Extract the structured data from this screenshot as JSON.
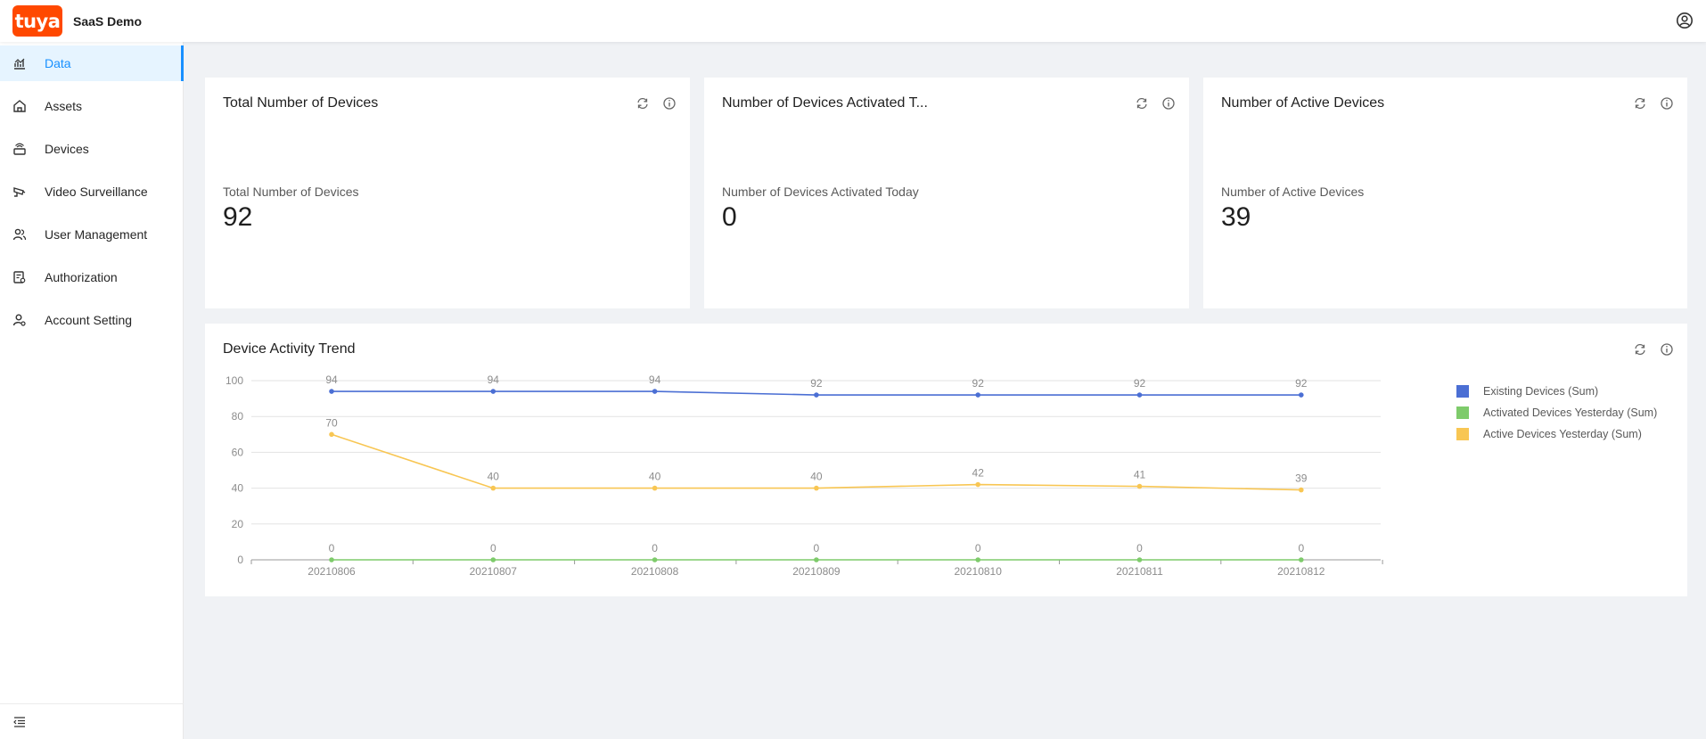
{
  "header": {
    "logo_text": "tuya",
    "app_name": "SaaS Demo"
  },
  "sidebar": {
    "items": [
      {
        "label": "Data",
        "icon": "chart-icon",
        "active": true
      },
      {
        "label": "Assets",
        "icon": "home-icon",
        "active": false
      },
      {
        "label": "Devices",
        "icon": "device-icon",
        "active": false
      },
      {
        "label": "Video Surveillance",
        "icon": "camera-icon",
        "active": false
      },
      {
        "label": "User Management",
        "icon": "users-icon",
        "active": false
      },
      {
        "label": "Authorization",
        "icon": "authorization-icon",
        "active": false
      },
      {
        "label": "Account Setting",
        "icon": "account-setting-icon",
        "active": false
      }
    ]
  },
  "cards": [
    {
      "title": "Total Number of Devices",
      "label": "Total Number of Devices",
      "value": "92"
    },
    {
      "title": "Number of Devices Activated T...",
      "label": "Number of Devices Activated Today",
      "value": "0"
    },
    {
      "title": "Number of Active Devices",
      "label": "Number of Active Devices",
      "value": "39"
    }
  ],
  "trend": {
    "title": "Device Activity Trend"
  },
  "colors": {
    "accent": "#1890ff",
    "brand": "#ff4800",
    "existing": "#4b6fd4",
    "activated": "#7ecb6b",
    "active": "#f8c653"
  },
  "chart_data": {
    "type": "line",
    "title": "Device Activity Trend",
    "xlabel": "",
    "ylabel": "",
    "ylim": [
      0,
      100
    ],
    "yticks": [
      0,
      20,
      40,
      60,
      80,
      100
    ],
    "categories": [
      "20210806",
      "20210807",
      "20210808",
      "20210809",
      "20210810",
      "20210811",
      "20210812"
    ],
    "series": [
      {
        "name": "Existing Devices (Sum)",
        "color": "#4b6fd4",
        "values": [
          94,
          94,
          94,
          92,
          92,
          92,
          92
        ]
      },
      {
        "name": "Activated Devices Yesterday (Sum)",
        "color": "#7ecb6b",
        "values": [
          0,
          0,
          0,
          0,
          0,
          0,
          0
        ]
      },
      {
        "name": "Active Devices Yesterday (Sum)",
        "color": "#f8c653",
        "values": [
          70,
          40,
          40,
          40,
          42,
          41,
          39
        ]
      }
    ],
    "grid": true,
    "legend": "right"
  }
}
